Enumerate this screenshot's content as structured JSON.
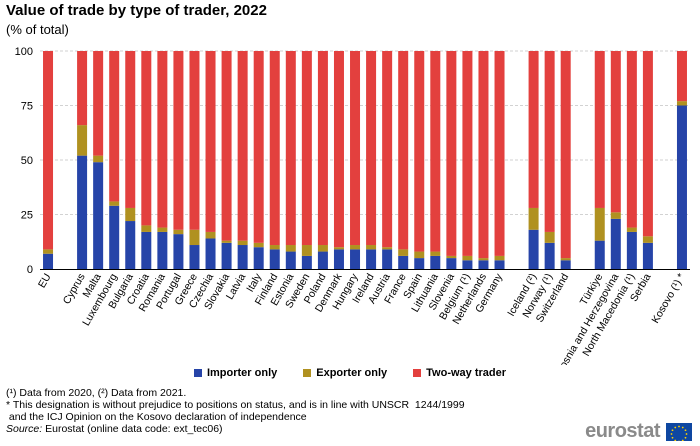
{
  "chart_data": {
    "type": "bar",
    "stacked": true,
    "title": "Value of trade by type of trader, 2022",
    "subtitle": "(% of total)",
    "ylim": [
      0,
      100
    ],
    "yticks": [
      0,
      25,
      50,
      75,
      100
    ],
    "grid": true,
    "legend_position": "bottom",
    "categories": [
      "EU",
      "Cyprus",
      "Malta",
      "Luxembourg",
      "Bulgaria",
      "Croatia",
      "Romania",
      "Portugal",
      "Greece",
      "Czechia",
      "Slovakia",
      "Latvia",
      "Italy",
      "Finland",
      "Estonia",
      "Sweden",
      "Poland",
      "Denmark",
      "Hungary",
      "Ireland",
      "Austria",
      "France",
      "Spain",
      "Lithuania",
      "Slovenia",
      "Belgium (¹)",
      "Netherlands",
      "Germany",
      "Iceland (²)",
      "Norway (¹)",
      "Switzerland",
      "Türkiye",
      "Bosnia and Herzegovina",
      "North Macedonia (¹)",
      "Serbia",
      "Kosovo (¹) *"
    ],
    "groups": [
      1,
      27,
      3,
      4,
      1
    ],
    "series": [
      {
        "name": "Importer only",
        "color": "#2644a8",
        "values": [
          7,
          52,
          49,
          29,
          22,
          17,
          17,
          16,
          11,
          14,
          12,
          11,
          10,
          9,
          8,
          6,
          8,
          9,
          9,
          9,
          9,
          6,
          5,
          6,
          5,
          4,
          4,
          4,
          18,
          12,
          4,
          13,
          23,
          17,
          12,
          75
        ]
      },
      {
        "name": "Exporter only",
        "color": "#b09120",
        "values": [
          2,
          14,
          3,
          2,
          6,
          3,
          2,
          2,
          7,
          3,
          1,
          2,
          2,
          2,
          3,
          5,
          3,
          1,
          2,
          2,
          1,
          3,
          3,
          2,
          1,
          2,
          1,
          2,
          10,
          5,
          1,
          15,
          3,
          2,
          3,
          2
        ]
      },
      {
        "name": "Two-way trader",
        "color": "#e3403e",
        "values": [
          91,
          34,
          48,
          69,
          72,
          80,
          81,
          82,
          82,
          83,
          87,
          87,
          88,
          89,
          89,
          89,
          89,
          90,
          89,
          89,
          90,
          91,
          92,
          92,
          94,
          94,
          95,
          94,
          72,
          83,
          95,
          72,
          74,
          81,
          85,
          23
        ]
      }
    ]
  },
  "notes": [
    "(¹) Data from 2020, (²) Data from 2021.",
    "* This designation is without prejudice to positions on status, and is in line with UNSCR  1244/1999",
    " and the ICJ Opinion on the Kosovo declaration of independence"
  ],
  "source": {
    "label": "Source:",
    "text": " Eurostat (online data code: ext_tec06)"
  },
  "logo": {
    "text": "eurostat",
    "icon": "eu-flag-icon"
  }
}
